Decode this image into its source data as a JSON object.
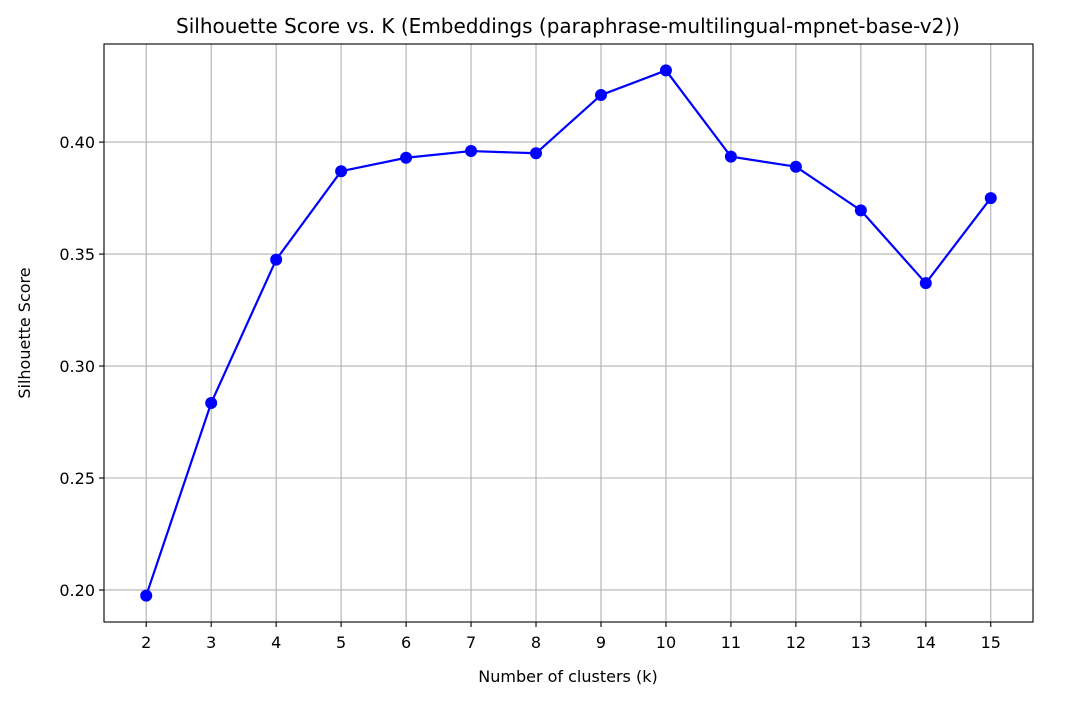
{
  "chart_data": {
    "type": "line",
    "title": "Silhouette Score vs. K (Embeddings (paraphrase-multilingual-mpnet-base-v2))",
    "xlabel": "Number of clusters (k)",
    "ylabel": "Silhouette Score",
    "x": [
      2,
      3,
      4,
      5,
      6,
      7,
      8,
      9,
      10,
      11,
      12,
      13,
      14,
      15
    ],
    "series": [
      {
        "values": [
          0.1975,
          0.2835,
          0.3475,
          0.387,
          0.393,
          0.396,
          0.395,
          0.421,
          0.432,
          0.3935,
          0.389,
          0.3695,
          0.337,
          0.375
        ],
        "color": "#0000ff",
        "marker": "circle"
      }
    ],
    "xticks": [
      "2",
      "3",
      "4",
      "5",
      "6",
      "7",
      "8",
      "9",
      "10",
      "11",
      "12",
      "13",
      "14",
      "15"
    ],
    "yticks": [
      "0.20",
      "0.25",
      "0.30",
      "0.35",
      "0.40"
    ],
    "ytick_values": [
      0.2,
      0.25,
      0.3,
      0.35,
      0.4
    ],
    "xlim": [
      1.35,
      15.65
    ],
    "ylim": [
      0.1857,
      0.4438
    ],
    "grid": true
  }
}
